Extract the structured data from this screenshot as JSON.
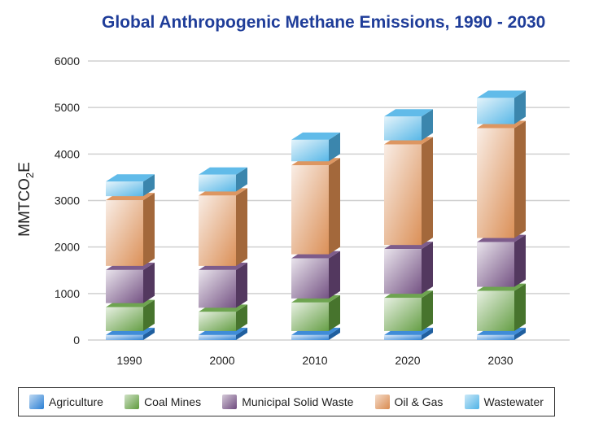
{
  "chart_data": {
    "type": "bar",
    "stacked": true,
    "title": "Global Anthropogenic Methane Emissions, 1990 - 2030",
    "xlabel": "",
    "ylabel": "MMTCO2E",
    "ylim": [
      0,
      6000
    ],
    "yticks": [
      0,
      1000,
      2000,
      3000,
      4000,
      5000,
      6000
    ],
    "grid": true,
    "legend_position": "bottom",
    "categories": [
      "1990",
      "2000",
      "2010",
      "2020",
      "2030"
    ],
    "series": [
      {
        "name": "Agriculture",
        "color": "#2a7fd4",
        "values": [
          150,
          150,
          150,
          150,
          150
        ]
      },
      {
        "name": "Coal Mines",
        "color": "#5e9a3c",
        "values": [
          600,
          500,
          700,
          800,
          950
        ]
      },
      {
        "name": "Municipal Solid Waste",
        "color": "#6e4a7e",
        "values": [
          800,
          900,
          950,
          1050,
          1050
        ]
      },
      {
        "name": "Oil & Gas",
        "color": "#d98a4f",
        "values": [
          1500,
          1600,
          2000,
          2250,
          2450
        ]
      },
      {
        "name": "Wastewater",
        "color": "#4fb3e6",
        "values": [
          400,
          450,
          550,
          600,
          650
        ]
      }
    ]
  }
}
